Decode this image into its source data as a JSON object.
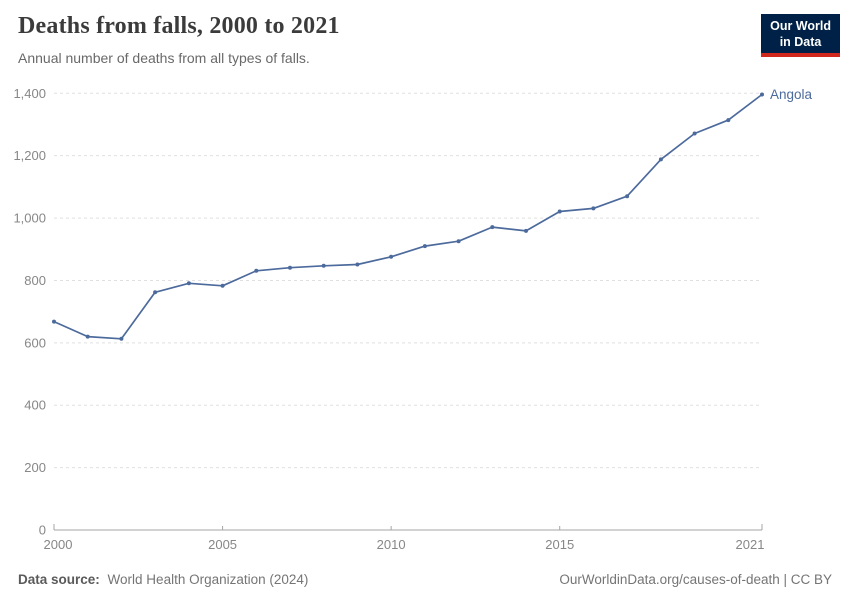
{
  "header": {
    "title": "Deaths from falls, 2000 to 2021",
    "subtitle": "Annual number of deaths from all types of falls."
  },
  "logo": {
    "line1": "Our World",
    "line2": "in Data",
    "bg_color": "#002147",
    "accent_color": "#d0281c",
    "text_color": "#ffffff"
  },
  "chart_data": {
    "type": "line",
    "title": "Deaths from falls, 2000 to 2021",
    "xlabel": "",
    "ylabel": "",
    "x": [
      2000,
      2001,
      2002,
      2003,
      2004,
      2005,
      2006,
      2007,
      2008,
      2009,
      2010,
      2011,
      2012,
      2013,
      2014,
      2015,
      2016,
      2017,
      2018,
      2019,
      2020,
      2021
    ],
    "series": [
      {
        "name": "Angola",
        "color": "#4c6a9c",
        "values": [
          668,
          620,
          613,
          762,
          791,
          783,
          831,
          841,
          847,
          851,
          876,
          910,
          926,
          971,
          959,
          1021,
          1031,
          1070,
          1188,
          1271,
          1314,
          1396
        ]
      }
    ],
    "ylim": [
      0,
      1400
    ],
    "yticks": [
      {
        "value": 0,
        "label": "0"
      },
      {
        "value": 200,
        "label": "200"
      },
      {
        "value": 400,
        "label": "400"
      },
      {
        "value": 600,
        "label": "600"
      },
      {
        "value": 800,
        "label": "800"
      },
      {
        "value": 1000,
        "label": "1,000"
      },
      {
        "value": 1200,
        "label": "1,200"
      },
      {
        "value": 1400,
        "label": "1,400"
      }
    ],
    "xticks": [
      {
        "value": 2000,
        "label": "2000"
      },
      {
        "value": 2005,
        "label": "2005"
      },
      {
        "value": 2010,
        "label": "2010"
      },
      {
        "value": 2015,
        "label": "2015"
      },
      {
        "value": 2021,
        "label": "2021"
      }
    ],
    "grid": "horizontal-dashed",
    "legend": "end-of-line-label",
    "end_label": "Angola"
  },
  "colors": {
    "line": "#4c6a9c",
    "grid": "#e0e0e0",
    "axis": "#a6a6a6",
    "tick_label": "#878787"
  },
  "footer": {
    "source_label": "Data source:",
    "source_value": "World Health Organization (2024)",
    "credit": "OurWorldinData.org/causes-of-death | CC BY"
  }
}
